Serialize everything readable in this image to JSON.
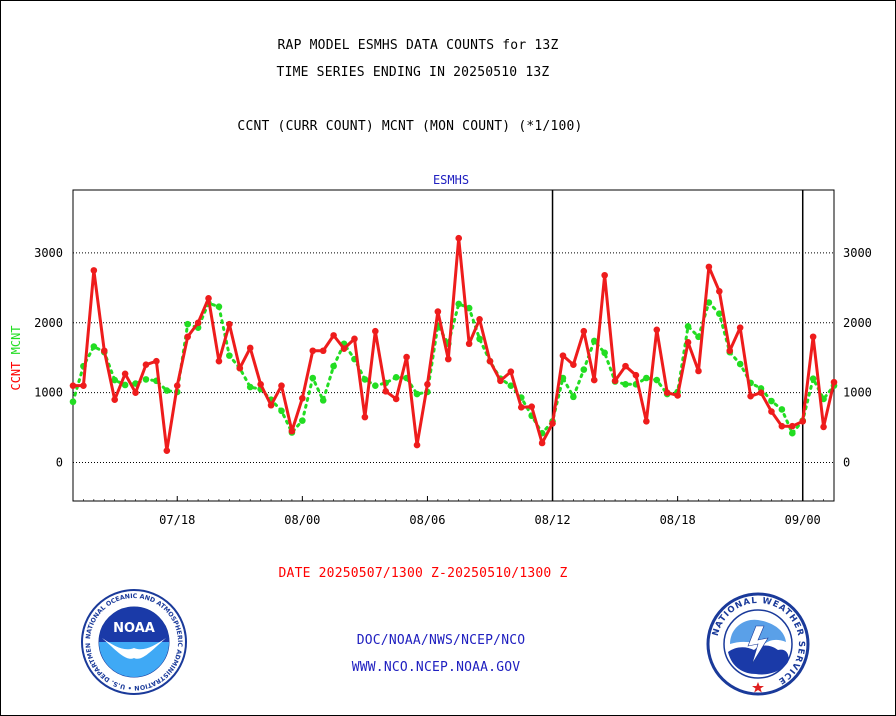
{
  "header": {
    "line1": "RAP MODEL ESMHS DATA COUNTS for 13Z",
    "line2": "TIME SERIES ENDING IN 20250510 13Z",
    "line3": "CCNT (CURR COUNT) MCNT (MON COUNT) (*1/100)"
  },
  "footer": {
    "date_range": "DATE 20250507/1300 Z-20250510/1300 Z",
    "org": "DOC/NOAA/NWS/NCEP/NCO",
    "url": "WWW.NCO.NCEP.NOAA.GOV"
  },
  "logos": {
    "noaa_text": "NOAA",
    "noaa_ring": "NATIONAL OCEANIC AND ATMOSPHERIC ADMINISTRATION • U.S. DEPARTMENT OF COMMERCE",
    "nws_ring": "NATIONAL WEATHER SERVICE"
  },
  "colors": {
    "ccnt": "#ee1c1c",
    "mcnt": "#22dd22",
    "axis_text": "#000000",
    "title_blue": "#2020c0",
    "footer_red": "#ff0000"
  },
  "chart_data": {
    "type": "line",
    "title": "ESMHS",
    "ylabel_parts": [
      {
        "text": "CCNT",
        "color": "#ff0000"
      },
      {
        "text": "MCNT",
        "color": "#22dd22"
      }
    ],
    "xlim": [
      0,
      73
    ],
    "ylim": [
      -550,
      3900
    ],
    "yticks": [
      0,
      1000,
      2000,
      3000
    ],
    "gridlines": [
      0,
      1000,
      2000,
      3000
    ],
    "xticks": [
      {
        "x": 10,
        "label": "07/18"
      },
      {
        "x": 22,
        "label": "08/00"
      },
      {
        "x": 34,
        "label": "08/06"
      },
      {
        "x": 46,
        "label": "08/12"
      },
      {
        "x": 58,
        "label": "08/18"
      },
      {
        "x": 70,
        "label": "09/00"
      }
    ],
    "day_separators": [
      46,
      70
    ],
    "series": [
      {
        "name": "CCNT",
        "x": [
          0,
          1,
          2,
          3,
          4,
          5,
          6,
          7,
          8,
          9,
          10,
          11,
          12,
          13,
          14,
          15,
          16,
          17,
          18,
          19,
          20,
          21,
          22,
          23,
          24,
          25,
          26,
          27,
          28,
          29,
          30,
          31,
          32,
          33,
          34,
          35,
          36,
          37,
          38,
          39,
          40,
          41,
          42,
          43,
          44,
          45,
          46,
          47,
          48,
          49,
          50,
          51,
          52,
          53,
          54,
          55,
          56,
          57,
          58,
          59,
          60,
          61,
          62,
          63,
          64,
          65,
          66,
          67,
          68,
          69,
          70,
          71,
          72,
          73
        ],
        "values": [
          1100,
          1100,
          2750,
          1600,
          900,
          1270,
          1000,
          1400,
          1450,
          170,
          1100,
          1800,
          2000,
          2350,
          1450,
          1980,
          1350,
          1640,
          1120,
          820,
          1100,
          450,
          920,
          1600,
          1600,
          1820,
          1630,
          1770,
          650,
          1880,
          1020,
          910,
          1510,
          250,
          1120,
          2160,
          1480,
          3210,
          1700,
          2050,
          1450,
          1170,
          1300,
          790,
          800,
          280,
          560,
          1530,
          1400,
          1880,
          1180,
          2680,
          1170,
          1380,
          1250,
          590,
          1900,
          1000,
          960,
          1720,
          1310,
          2800,
          2450,
          1600,
          1930,
          950,
          1000,
          730,
          520,
          520,
          590,
          1800,
          510,
          1150
        ],
        "color": "#ee1c1c"
      },
      {
        "name": "MCNT",
        "x": [
          0,
          1,
          2,
          3,
          4,
          5,
          6,
          7,
          8,
          9,
          10,
          11,
          12,
          13,
          14,
          15,
          16,
          17,
          18,
          19,
          20,
          21,
          22,
          23,
          24,
          25,
          26,
          27,
          28,
          29,
          30,
          31,
          32,
          33,
          34,
          35,
          36,
          37,
          38,
          39,
          40,
          41,
          42,
          43,
          44,
          45,
          46,
          47,
          48,
          49,
          50,
          51,
          52,
          53,
          54,
          55,
          56,
          57,
          58,
          59,
          60,
          61,
          62,
          63,
          64,
          65,
          66,
          67,
          68,
          69,
          70,
          71,
          72,
          73
        ],
        "values": [
          870,
          1380,
          1660,
          1580,
          1180,
          1110,
          1130,
          1190,
          1170,
          1030,
          1010,
          1980,
          1930,
          2280,
          2230,
          1530,
          1350,
          1080,
          1050,
          900,
          740,
          430,
          600,
          1210,
          890,
          1380,
          1700,
          1480,
          1190,
          1100,
          1140,
          1220,
          1210,
          980,
          1010,
          1960,
          1700,
          2270,
          2210,
          1770,
          1450,
          1200,
          1100,
          930,
          670,
          420,
          590,
          1210,
          940,
          1330,
          1740,
          1570,
          1160,
          1120,
          1120,
          1210,
          1180,
          980,
          1010,
          1950,
          1800,
          2290,
          2130,
          1580,
          1410,
          1140,
          1060,
          880,
          760,
          420,
          600,
          1200,
          910,
          1100
        ],
        "color": "#22dd22"
      }
    ]
  }
}
